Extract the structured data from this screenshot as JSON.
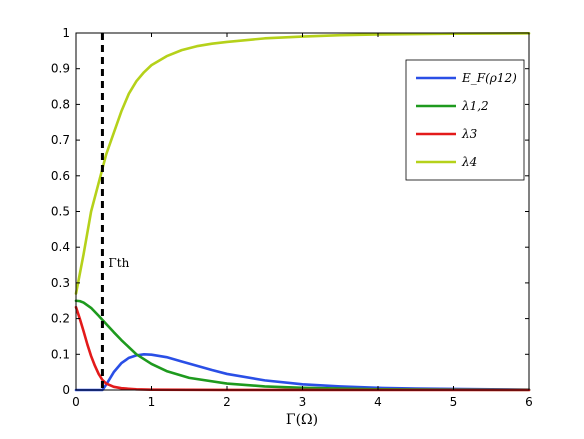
{
  "chart_data": {
    "type": "line",
    "xlabel": "Γ(Ω)",
    "ylabel": "",
    "xlim": [
      0,
      6
    ],
    "ylim": [
      0,
      1
    ],
    "xticks": [
      "0",
      "1",
      "2",
      "3",
      "4",
      "5",
      "6"
    ],
    "yticks": [
      "0",
      "0.1",
      "0.2",
      "0.3",
      "0.4",
      "0.5",
      "0.6",
      "0.7",
      "0.8",
      "0.9",
      "1"
    ],
    "grid": false,
    "legend_position": "top-right",
    "annotation": {
      "text": "Γth",
      "x": 0.35
    },
    "series": [
      {
        "name": "E_F(ρ12)",
        "color": "#2a4fe6",
        "x": [
          0,
          0.35,
          0.4,
          0.5,
          0.6,
          0.7,
          0.8,
          0.9,
          1.0,
          1.2,
          1.4,
          1.6,
          1.8,
          2.0,
          2.5,
          3.0,
          3.5,
          4.0,
          4.5,
          5.0,
          5.5,
          6.0
        ],
        "y": [
          0,
          0,
          0.015,
          0.05,
          0.075,
          0.09,
          0.097,
          0.1,
          0.099,
          0.092,
          0.08,
          0.068,
          0.056,
          0.045,
          0.027,
          0.016,
          0.01,
          0.006,
          0.004,
          0.003,
          0.002,
          0.001
        ]
      },
      {
        "name": "λ1,2",
        "color": "#1e9a1e",
        "x": [
          0,
          0.05,
          0.1,
          0.2,
          0.3,
          0.4,
          0.5,
          0.6,
          0.8,
          1.0,
          1.2,
          1.5,
          2.0,
          2.5,
          3.0,
          4.0,
          5.0,
          6.0
        ],
        "y": [
          0.25,
          0.249,
          0.245,
          0.23,
          0.208,
          0.185,
          0.162,
          0.14,
          0.1,
          0.073,
          0.053,
          0.034,
          0.018,
          0.01,
          0.006,
          0.002,
          0.001,
          0.0005
        ]
      },
      {
        "name": "λ3",
        "color": "#e31a1a",
        "x": [
          0,
          0.05,
          0.1,
          0.15,
          0.2,
          0.25,
          0.3,
          0.35,
          0.4,
          0.5,
          0.6,
          0.8,
          1.0,
          1.5,
          2.0,
          3.0,
          4.0,
          5.0,
          6.0
        ],
        "y": [
          0.232,
          0.2,
          0.165,
          0.128,
          0.095,
          0.068,
          0.045,
          0.028,
          0.018,
          0.009,
          0.005,
          0.002,
          0.001,
          0.0005,
          0.0002,
          0.0001,
          0,
          0,
          0
        ]
      },
      {
        "name": "λ4",
        "color": "#b5d11a",
        "x": [
          0,
          0.1,
          0.2,
          0.3,
          0.35,
          0.4,
          0.5,
          0.6,
          0.7,
          0.8,
          0.9,
          1.0,
          1.2,
          1.4,
          1.6,
          1.8,
          2.0,
          2.5,
          3.0,
          3.5,
          4.0,
          5.0,
          6.0
        ],
        "y": [
          0.27,
          0.38,
          0.5,
          0.58,
          0.62,
          0.66,
          0.72,
          0.78,
          0.83,
          0.865,
          0.89,
          0.91,
          0.935,
          0.952,
          0.963,
          0.97,
          0.975,
          0.985,
          0.99,
          0.994,
          0.996,
          0.998,
          0.999
        ]
      }
    ]
  }
}
